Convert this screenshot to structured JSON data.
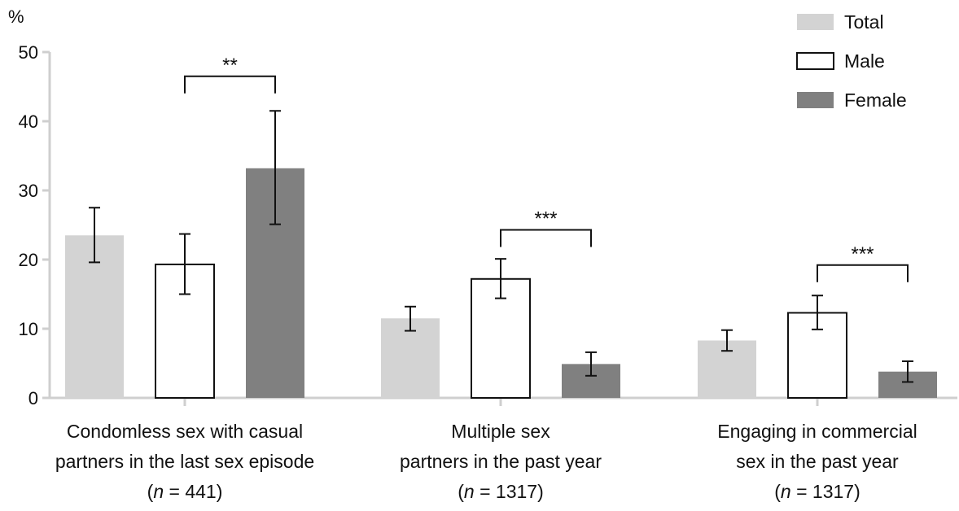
{
  "chart_data": {
    "type": "bar",
    "ylabel": "%",
    "ylim": [
      0,
      50
    ],
    "yticks": [
      0,
      10,
      20,
      30,
      40,
      50
    ],
    "grid": false,
    "legend_position": "top-right",
    "categories": [
      {
        "lines": [
          "Condomless sex with casual",
          "partners in the last sex episode"
        ],
        "n_prefix": "(",
        "n_var": "n",
        "n_suffix": " = 441)"
      },
      {
        "lines": [
          "Multiple sex",
          "partners in the past year"
        ],
        "n_prefix": "(",
        "n_var": "n",
        "n_suffix": " = 1317)"
      },
      {
        "lines": [
          "Engaging in commercial",
          "sex in the past year"
        ],
        "n_prefix": "(",
        "n_var": "n",
        "n_suffix": " = 1317)"
      }
    ],
    "series": [
      {
        "name": "Total",
        "fill": "#d3d3d3",
        "stroke": "none",
        "values": [
          23.5,
          11.5,
          8.3
        ],
        "err_low": [
          19.6,
          9.7,
          6.8
        ],
        "err_high": [
          27.5,
          13.2,
          9.8
        ]
      },
      {
        "name": "Male",
        "fill": "#ffffff",
        "stroke": "#111111",
        "values": [
          19.3,
          17.2,
          12.3
        ],
        "err_low": [
          15.0,
          14.4,
          9.9
        ],
        "err_high": [
          23.7,
          20.1,
          14.8
        ]
      },
      {
        "name": "Female",
        "fill": "#808080",
        "stroke": "none",
        "values": [
          33.2,
          4.9,
          3.8
        ],
        "err_low": [
          25.1,
          3.2,
          2.3
        ],
        "err_high": [
          41.5,
          6.6,
          5.3
        ]
      }
    ],
    "significance": [
      {
        "category": 0,
        "label": "**",
        "bracket_y": 46.5
      },
      {
        "category": 1,
        "label": "***",
        "bracket_y": 24.3
      },
      {
        "category": 2,
        "label": "***",
        "bracket_y": 19.2
      }
    ]
  }
}
